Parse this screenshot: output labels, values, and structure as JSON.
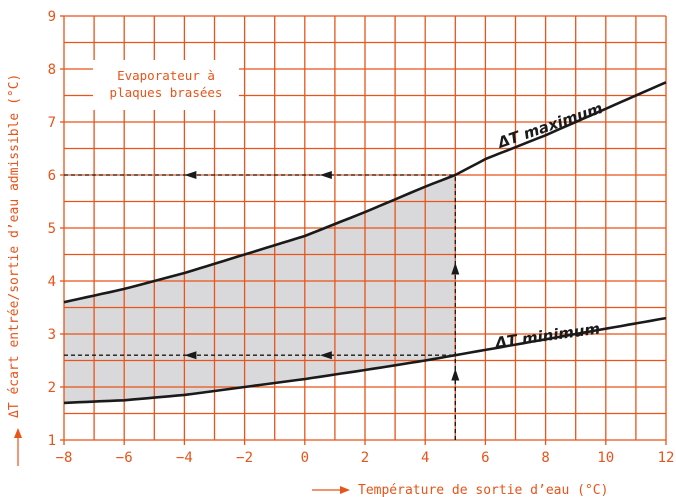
{
  "chart_data": {
    "type": "line",
    "xlabel": "Température de sortie d’eau  (°C)",
    "ylabel": "ΔT écart entrée/sortie d’eau admissible (°C)",
    "xlim": [
      -8,
      12
    ],
    "ylim": [
      1,
      9
    ],
    "x_ticks": [
      -8,
      -6,
      -4,
      -2,
      0,
      2,
      4,
      6,
      8,
      10,
      12
    ],
    "y_ticks": [
      1,
      2,
      3,
      4,
      5,
      6,
      7,
      8,
      9
    ],
    "x_tick_labels": [
      "−8",
      "−6",
      "−4",
      "−2",
      "0",
      "2",
      "4",
      "6",
      "8",
      "10",
      "12"
    ],
    "y_tick_labels": [
      "1",
      "2",
      "3",
      "4",
      "5",
      "6",
      "7",
      "8",
      "9"
    ],
    "grid": true,
    "grid_step": {
      "x": 1,
      "y": 0.5
    },
    "annotation_box": {
      "lines": [
        "Evaporateur à",
        "plaques brasées"
      ]
    },
    "series": [
      {
        "name": "ΔT maximum",
        "x": [
          -8,
          -6,
          -4,
          -2,
          0,
          2,
          4,
          5,
          6,
          8,
          10,
          12
        ],
        "y": [
          3.6,
          3.85,
          4.15,
          4.5,
          4.85,
          5.3,
          5.78,
          6.0,
          6.3,
          6.75,
          7.25,
          7.75
        ]
      },
      {
        "name": "ΔT minimum",
        "x": [
          -8,
          -6,
          -4,
          -2,
          0,
          2,
          4,
          5,
          6,
          8,
          10,
          12
        ],
        "y": [
          1.7,
          1.75,
          1.85,
          2.0,
          2.15,
          2.32,
          2.5,
          2.6,
          2.7,
          2.9,
          3.1,
          3.3
        ]
      }
    ],
    "shaded_region": {
      "x_from": -8,
      "x_to": 5
    },
    "guides": [
      {
        "x": 5,
        "y": 6.0,
        "arrow_y_positions_x": [
          5
        ],
        "arrow_x_positions_y": [
          -4,
          0.5
        ]
      },
      {
        "x": 5,
        "y": 2.6,
        "arrow_y_positions_x": [
          5
        ],
        "arrow_x_positions_y": [
          -4,
          0.5
        ]
      }
    ],
    "colors": {
      "grid": "#e8541a",
      "curve": "#1a1a1a",
      "shade": "#d9d9db",
      "text": "#e8541a",
      "box_fill": "#ffffff"
    }
  }
}
